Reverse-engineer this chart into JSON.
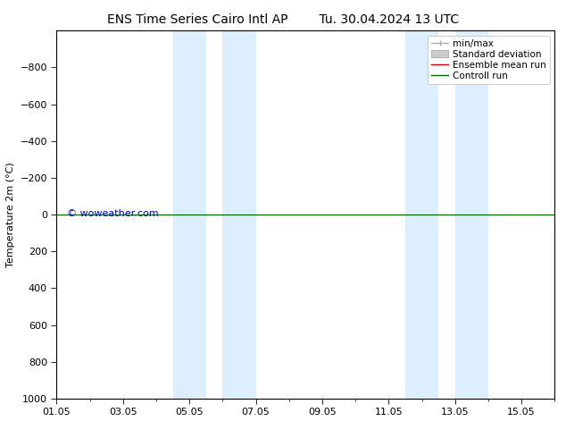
{
  "title_left": "ENS Time Series Cairo Intl AP",
  "title_right": "Tu. 30.04.2024 13 UTC",
  "ylabel": "Temperature 2m (°C)",
  "watermark": "© woweather.com",
  "watermark_color": "#0000cc",
  "ylim_bottom": 1000,
  "ylim_top": -1000,
  "yticks": [
    -800,
    -600,
    -400,
    -200,
    0,
    200,
    400,
    600,
    800,
    1000
  ],
  "xlim_start": 0,
  "xlim_end": 15,
  "xtick_labels": [
    "01.05",
    "03.05",
    "05.05",
    "07.05",
    "09.05",
    "11.05",
    "13.05",
    "15.05"
  ],
  "xtick_positions_days": [
    0,
    2,
    4,
    6,
    8,
    10,
    12,
    14
  ],
  "shaded_regions": [
    {
      "start_day": 3.5,
      "end_day": 4.5
    },
    {
      "start_day": 5.0,
      "end_day": 6.0
    },
    {
      "start_day": 10.5,
      "end_day": 11.5
    },
    {
      "start_day": 12.0,
      "end_day": 13.0
    }
  ],
  "shaded_color": "#ddeeff",
  "line_y": 0,
  "ensemble_mean_color": "#cc0000",
  "control_run_color": "#006600",
  "minmax_color": "#999999",
  "stddev_color": "#cccccc",
  "legend_entries": [
    "min/max",
    "Standard deviation",
    "Ensemble mean run",
    "Controll run"
  ],
  "legend_colors": [
    "#aaaaaa",
    "#cccccc",
    "#cc0000",
    "#006600"
  ],
  "bg_color": "#ffffff",
  "spine_color": "#000000",
  "font_size_title": 10,
  "font_size_axis": 8,
  "font_size_legend": 7.5,
  "font_size_watermark": 8
}
